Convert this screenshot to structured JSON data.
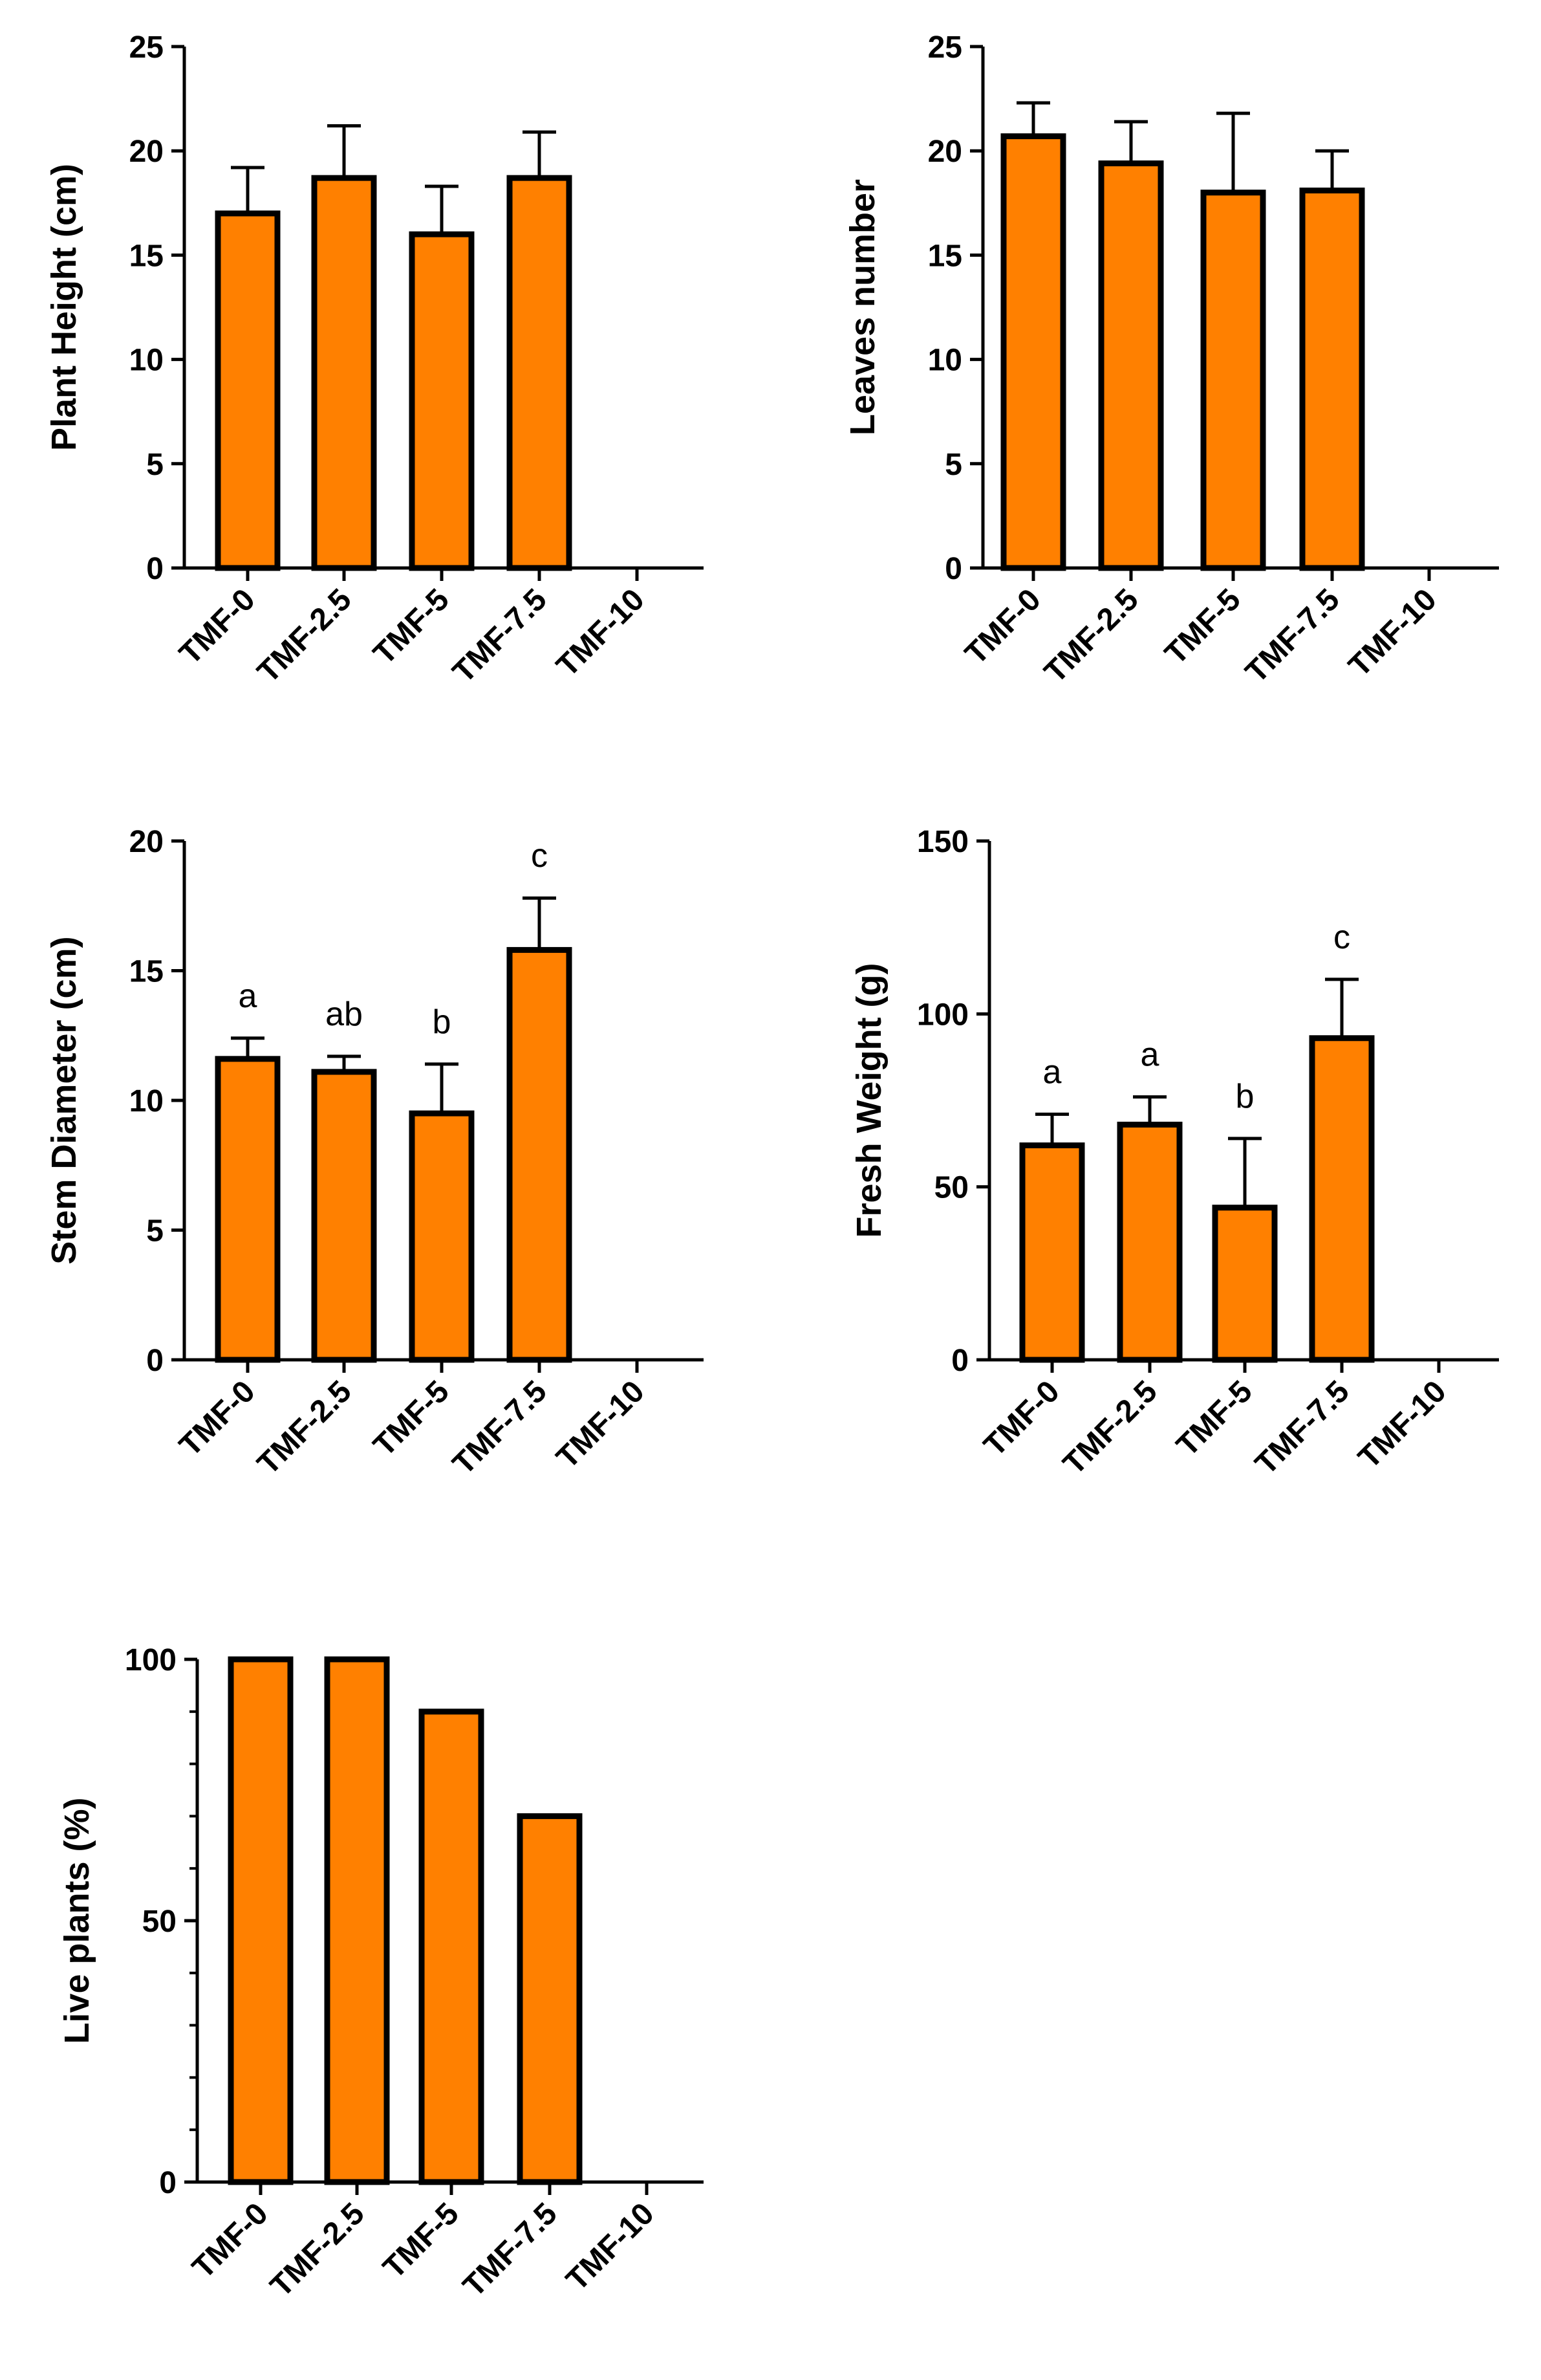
{
  "style": {
    "bar_color": "#FF8000",
    "stroke_color": "#000000"
  },
  "chart_data": [
    {
      "type": "bar",
      "title": "",
      "xlabel": "",
      "ylabel": "Plant Height (cm)",
      "ylim": [
        0,
        25
      ],
      "yticks": [
        0,
        5,
        10,
        15,
        20,
        25
      ],
      "ytick_labels": [
        "0",
        "5",
        "10",
        "15",
        "20",
        "25"
      ],
      "minor_ticks": false,
      "categories": [
        "TMF-0",
        "TMF-2.5",
        "TMF-5",
        "TMF-7.5",
        "TMF-10"
      ],
      "values": [
        17.0,
        18.7,
        16.0,
        18.7,
        null
      ],
      "errors": [
        2.2,
        2.5,
        2.3,
        2.2,
        null
      ],
      "annotations": [
        "",
        "",
        "",
        "",
        ""
      ]
    },
    {
      "type": "bar",
      "title": "",
      "xlabel": "",
      "ylabel": "Leaves number",
      "ylim": [
        0,
        25
      ],
      "yticks": [
        0,
        5,
        10,
        15,
        20,
        25
      ],
      "ytick_labels": [
        "0",
        "5",
        "10",
        "15",
        "20",
        "25"
      ],
      "minor_ticks": false,
      "categories": [
        "TMF-0",
        "TMF-2.5",
        "TMF-5",
        "TMF-7.5",
        "TMF-10"
      ],
      "values": [
        20.7,
        19.4,
        18.0,
        18.1,
        null
      ],
      "errors": [
        1.6,
        2.0,
        3.8,
        1.9,
        null
      ],
      "annotations": [
        "",
        "",
        "",
        "",
        ""
      ]
    },
    {
      "type": "bar",
      "title": "",
      "xlabel": "",
      "ylabel": "Stem Diameter (cm)",
      "ylim": [
        0,
        20
      ],
      "yticks": [
        0,
        5,
        10,
        15,
        20
      ],
      "ytick_labels": [
        "0",
        "5",
        "10",
        "15",
        "20"
      ],
      "minor_ticks": false,
      "categories": [
        "TMF-0",
        "TMF-2.5",
        "TMF-5",
        "TMF-7.5",
        "TMF-10"
      ],
      "values": [
        11.6,
        11.1,
        9.5,
        15.8,
        null
      ],
      "errors": [
        0.8,
        0.6,
        1.9,
        2.0,
        null
      ],
      "annotations": [
        "a",
        "ab",
        "b",
        "c",
        ""
      ]
    },
    {
      "type": "bar",
      "title": "",
      "xlabel": "",
      "ylabel": "Fresh Weight (g)",
      "ylim": [
        0,
        150
      ],
      "yticks": [
        0,
        50,
        100,
        150
      ],
      "ytick_labels": [
        "0",
        "50",
        "100",
        "150"
      ],
      "minor_ticks": false,
      "categories": [
        "TMF-0",
        "TMF-2.5",
        "TMF-5",
        "TMF-7.5",
        "TMF-10"
      ],
      "values": [
        62,
        68,
        44,
        93,
        null
      ],
      "errors": [
        9,
        8,
        20,
        17,
        null
      ],
      "annotations": [
        "a",
        "a",
        "b",
        "c",
        ""
      ]
    },
    {
      "type": "bar",
      "title": "",
      "xlabel": "",
      "ylabel": "Live plants (%)",
      "ylim": [
        0,
        100
      ],
      "yticks": [
        0,
        50,
        100
      ],
      "ytick_labels": [
        "0",
        "50",
        "100"
      ],
      "minor_ticks": true,
      "categories": [
        "TMF-0",
        "TMF-2.5",
        "TMF-5",
        "TMF-7.5",
        "TMF-10"
      ],
      "values": [
        100,
        100,
        90,
        70,
        null
      ],
      "errors": [
        null,
        null,
        null,
        null,
        null
      ],
      "annotations": [
        "",
        "",
        "",
        "",
        ""
      ]
    }
  ]
}
